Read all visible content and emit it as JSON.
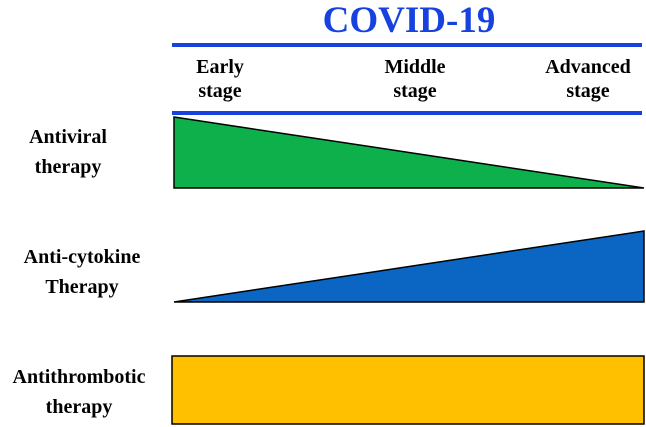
{
  "title": "COVID-19",
  "stages": [
    {
      "line1": "Early",
      "line2": "stage"
    },
    {
      "line1": "Middle",
      "line2": "stage"
    },
    {
      "line1": "Advanced",
      "line2": "stage"
    }
  ],
  "therapies": [
    {
      "line1": "Antiviral",
      "line2": "therapy",
      "color": "#0db04b"
    },
    {
      "line1": "Anti-cytokine",
      "line2": "Therapy",
      "color": "#0a66c2"
    },
    {
      "line1": "Antithrombotic",
      "line2": "therapy",
      "color": "#ffc000"
    }
  ],
  "colors": {
    "title": "#1742e0",
    "rule": "#1742e0"
  }
}
